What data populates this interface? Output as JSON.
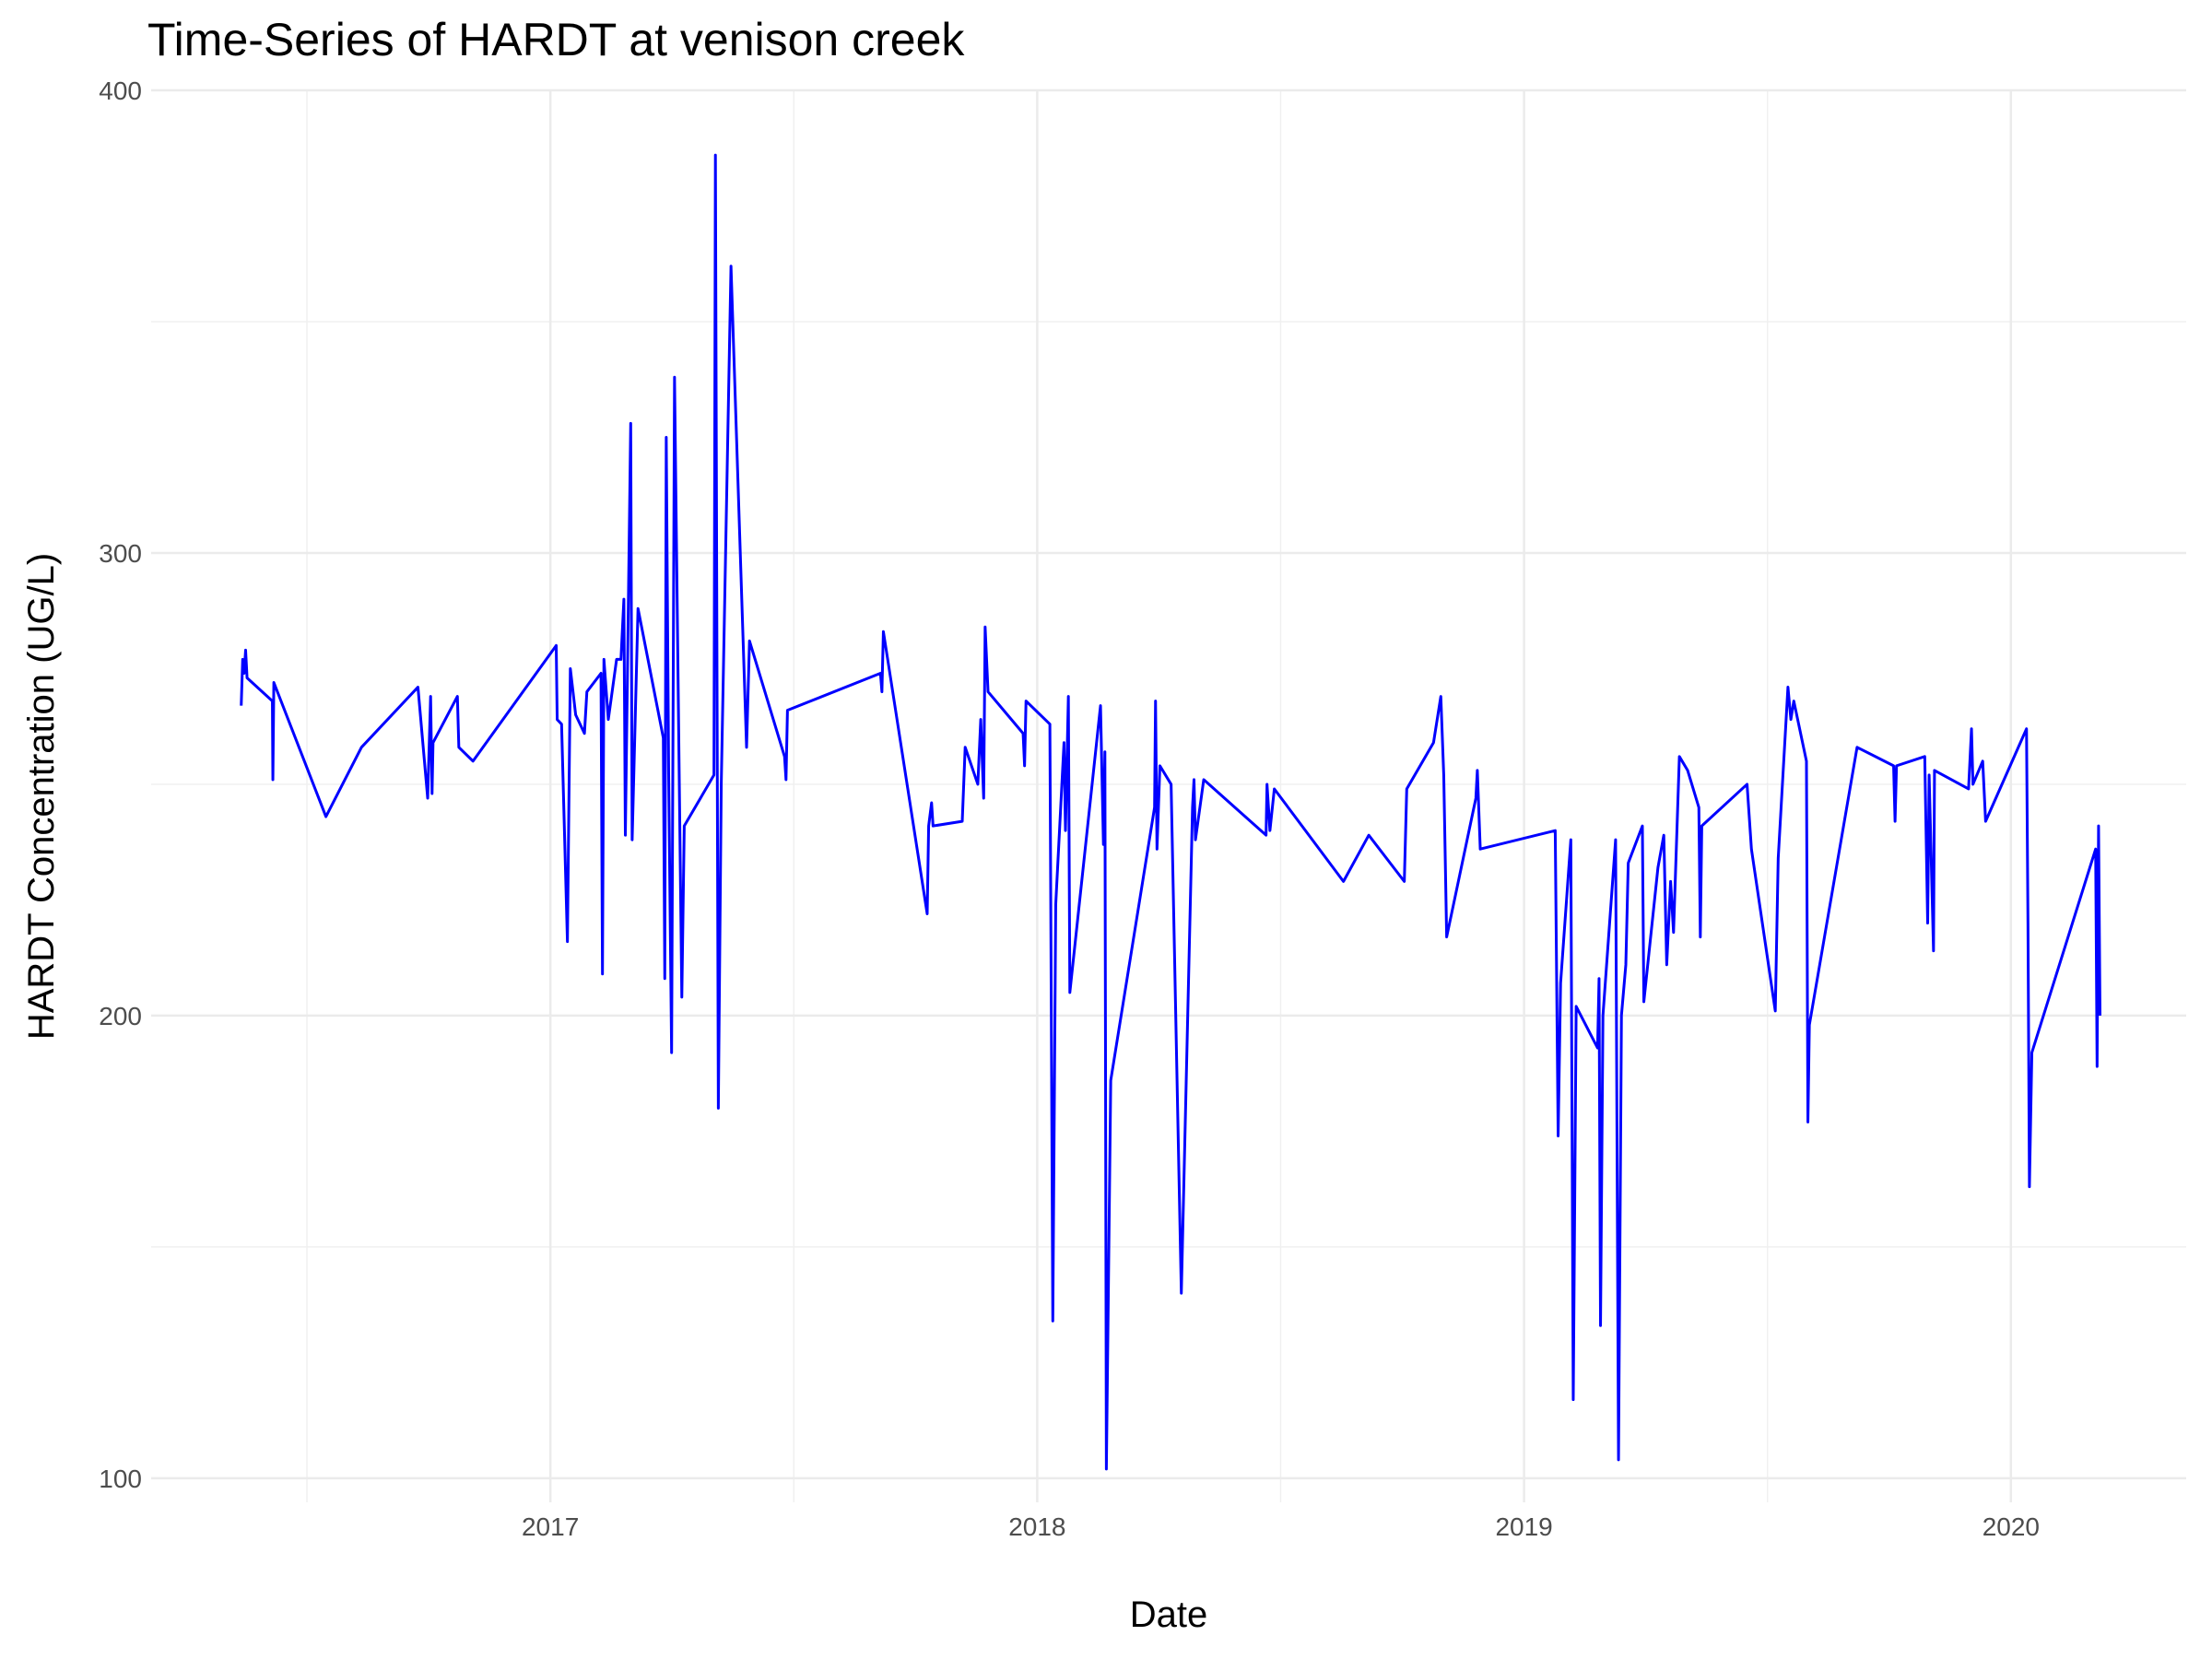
{
  "chart_data": {
    "type": "line",
    "title": "Time-Series of HARDT at venison creek",
    "x_label": "Date",
    "y_label": "HARDT Concentration (UG/L)",
    "xlim": [
      2016.18,
      2020.36
    ],
    "ylim": [
      94.8,
      400
    ],
    "xticks": [
      2017,
      2018,
      2019,
      2020
    ],
    "yticks": [
      100,
      200,
      300,
      400
    ],
    "grid": true,
    "series": [
      {
        "name": "HARDT",
        "color": "#0000ff",
        "x": [
          2016.365,
          2016.368,
          2016.371,
          2016.374,
          2016.377,
          2016.429,
          2016.43,
          2016.432,
          2016.539,
          2016.612,
          2016.728,
          2016.748,
          2016.754,
          2016.757,
          2016.759,
          2016.809,
          2016.812,
          2016.841,
          2017.012,
          2017.014,
          2017.023,
          2017.035,
          2017.041,
          2017.052,
          2017.07,
          2017.075,
          2017.104,
          2017.107,
          2017.11,
          2017.119,
          2017.136,
          2017.145,
          2017.151,
          2017.154,
          2017.165,
          2017.168,
          2017.18,
          2017.232,
          2017.235,
          2017.238,
          2017.243,
          2017.249,
          2017.255,
          2017.27,
          2017.275,
          2017.336,
          2017.339,
          2017.345,
          2017.351,
          2017.371,
          2017.403,
          2017.409,
          2017.481,
          2017.484,
          2017.487,
          2017.678,
          2017.681,
          2017.684,
          2017.774,
          2017.777,
          2017.783,
          2017.786,
          2017.846,
          2017.852,
          2017.878,
          2017.884,
          2017.89,
          2017.893,
          2017.899,
          2017.971,
          2017.974,
          2017.977,
          2018.026,
          2018.032,
          2018.038,
          2018.055,
          2018.058,
          2018.064,
          2018.067,
          2018.13,
          2018.136,
          2018.139,
          2018.142,
          2018.151,
          2018.241,
          2018.243,
          2018.246,
          2018.252,
          2018.275,
          2018.296,
          2018.319,
          2018.322,
          2018.325,
          2018.342,
          2018.47,
          2018.472,
          2018.478,
          2018.487,
          2018.629,
          2018.681,
          2018.754,
          2018.759,
          2018.814,
          2018.829,
          2018.835,
          2018.841,
          2018.901,
          2018.904,
          2018.91,
          2019.064,
          2019.07,
          2019.075,
          2019.096,
          2019.101,
          2019.107,
          2019.151,
          2019.154,
          2019.157,
          2019.162,
          2019.188,
          2019.194,
          2019.2,
          2019.209,
          2019.214,
          2019.243,
          2019.246,
          2019.275,
          2019.287,
          2019.293,
          2019.301,
          2019.307,
          2019.319,
          2019.336,
          2019.359,
          2019.362,
          2019.365,
          2019.458,
          2019.467,
          2019.516,
          2019.522,
          2019.542,
          2019.548,
          2019.554,
          2019.58,
          2019.583,
          2019.586,
          2019.684,
          2019.759,
          2019.762,
          2019.765,
          2019.823,
          2019.829,
          2019.832,
          2019.841,
          2019.843,
          2019.913,
          2019.919,
          2019.922,
          2019.942,
          2019.948,
          2020.032,
          2020.035,
          2020.038,
          2020.043,
          2020.174,
          2020.177,
          2020.18,
          2020.183
        ],
        "values": [
          267,
          277,
          274,
          279,
          273,
          268,
          251,
          272,
          243,
          258,
          271,
          247,
          269,
          248,
          259,
          269,
          258,
          255,
          280,
          264,
          263,
          216,
          275,
          265,
          261,
          270,
          274,
          209,
          277,
          264,
          277,
          277,
          290,
          239,
          328,
          238,
          288,
          260,
          208,
          325,
          252,
          192,
          338,
          204,
          241,
          252,
          386,
          180,
          250,
          362,
          258,
          281,
          256,
          251,
          266,
          274,
          270,
          283,
          222,
          241,
          246,
          241,
          242,
          258,
          250,
          264,
          247,
          284,
          270,
          261,
          254,
          268,
          263,
          134,
          224,
          259,
          240,
          269,
          205,
          267,
          237,
          257,
          102,
          186,
          245,
          268,
          236,
          254,
          250,
          140,
          245,
          251,
          238,
          251,
          239,
          250,
          240,
          249,
          229,
          239,
          229,
          249,
          259,
          269,
          252,
          217,
          247,
          253,
          236,
          240,
          174,
          207,
          238,
          117,
          202,
          193,
          208,
          133,
          200,
          238,
          104,
          200,
          211,
          233,
          241,
          203,
          232,
          239,
          211,
          229,
          218,
          256,
          253,
          245,
          217,
          241,
          250,
          236,
          201,
          234,
          271,
          264,
          268,
          255,
          177,
          198,
          258,
          254,
          242,
          254,
          256,
          220,
          252,
          214,
          253,
          249,
          262,
          250,
          255,
          242,
          262,
          220,
          163,
          192,
          236,
          189,
          241,
          200
        ]
      }
    ]
  }
}
